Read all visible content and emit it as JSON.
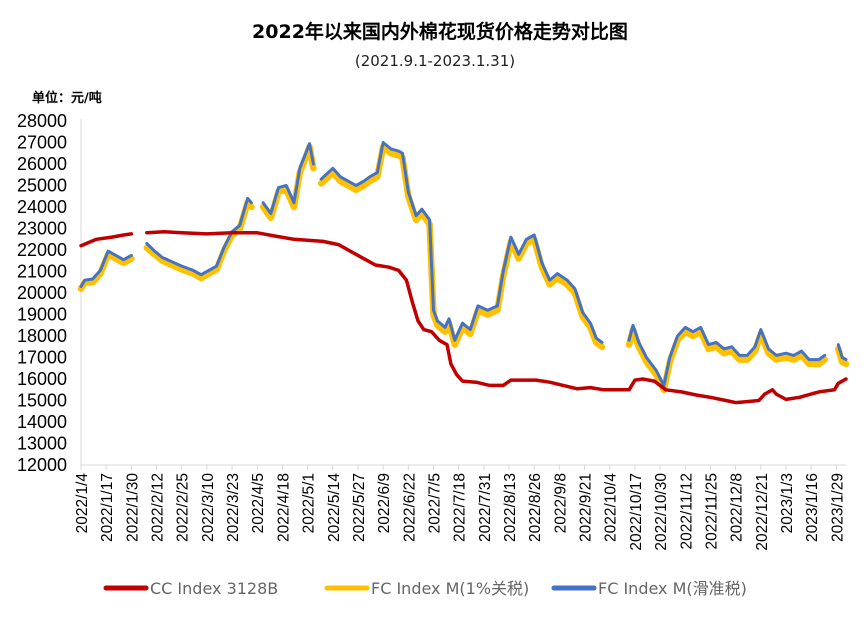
{
  "chart_data": {
    "type": "line",
    "title": "2022年以来国内外棉花现货价格走势对比图",
    "subtitle": "(2021.9.1-2023.1.31)",
    "unit_label": "单位：元/吨",
    "ylim": [
      12000,
      28000
    ],
    "y_ticks": [
      "28000",
      "27000",
      "26000",
      "25000",
      "24000",
      "23000",
      "22000",
      "21000",
      "20000",
      "19000",
      "18000",
      "17000",
      "16000",
      "15000",
      "14000",
      "13000",
      "12000"
    ],
    "x_ticks": [
      "2022/1/4",
      "2022/1/17",
      "2022/1/30",
      "2022/2/12",
      "2022/2/25",
      "2022/3/10",
      "2022/3/23",
      "2022/4/5",
      "2022/4/18",
      "2022/5/1",
      "2022/5/14",
      "2022/5/27",
      "2022/6/9",
      "2022/6/22",
      "2022/7/5",
      "2022/7/18",
      "2022/7/31",
      "2022/8/13",
      "2022/8/26",
      "2022/9/8",
      "2022/9/21",
      "2022/10/4",
      "2022/10/17",
      "2022/10/30",
      "2022/11/12",
      "2022/11/25",
      "2022/12/8",
      "2022/12/21",
      "2023/1/3",
      "2023/1/16",
      "2023/1/29"
    ],
    "x_range": [
      "2022/1/4",
      "2023/2/3"
    ],
    "grid": false,
    "legend_position": "bottom",
    "series": [
      {
        "name": "CC Index 3128B",
        "color": "#c00000",
        "points": [
          [
            "2022/1/4",
            22200
          ],
          [
            "2022/1/8",
            22350
          ],
          [
            "2022/1/12",
            22500
          ],
          [
            "2022/1/20",
            22600
          ],
          [
            "2022/1/26",
            22700
          ],
          [
            "2022/1/30",
            22750
          ],
          null,
          [
            "2022/2/7",
            22800
          ],
          [
            "2022/2/16",
            22850
          ],
          [
            "2022/2/25",
            22800
          ],
          [
            "2022/3/10",
            22750
          ],
          [
            "2022/3/23",
            22800
          ],
          [
            "2022/4/5",
            22800
          ],
          [
            "2022/4/14",
            22650
          ],
          [
            "2022/4/24",
            22500
          ],
          [
            "2022/5/1",
            22450
          ],
          [
            "2022/5/9",
            22400
          ],
          [
            "2022/5/17",
            22250
          ],
          [
            "2022/5/24",
            21900
          ],
          [
            "2022/5/31",
            21550
          ],
          [
            "2022/6/5",
            21300
          ],
          [
            "2022/6/12",
            21200
          ],
          [
            "2022/6/17",
            21050
          ],
          [
            "2022/6/21",
            20600
          ],
          [
            "2022/6/24",
            19600
          ],
          [
            "2022/6/27",
            18700
          ],
          [
            "2022/6/30",
            18300
          ],
          [
            "2022/7/4",
            18200
          ],
          [
            "2022/7/8",
            17800
          ],
          [
            "2022/7/12",
            17600
          ],
          [
            "2022/7/14",
            16700
          ],
          [
            "2022/7/17",
            16200
          ],
          [
            "2022/7/20",
            15900
          ],
          [
            "2022/7/27",
            15850
          ],
          [
            "2022/8/3",
            15700
          ],
          [
            "2022/8/10",
            15700
          ],
          [
            "2022/8/14",
            15950
          ],
          [
            "2022/8/20",
            15950
          ],
          [
            "2022/8/27",
            15950
          ],
          [
            "2022/9/3",
            15850
          ],
          [
            "2022/9/10",
            15700
          ],
          [
            "2022/9/17",
            15550
          ],
          [
            "2022/9/24",
            15600
          ],
          [
            "2022/10/1",
            15500
          ],
          [
            "2022/10/14",
            15500
          ],
          [
            "2022/10/17",
            15950
          ],
          [
            "2022/10/21",
            16000
          ],
          [
            "2022/10/27",
            15900
          ],
          [
            "2022/11/2",
            15500
          ],
          [
            "2022/11/10",
            15400
          ],
          [
            "2022/11/18",
            15250
          ],
          [
            "2022/11/25",
            15150
          ],
          [
            "2022/12/3",
            15000
          ],
          [
            "2022/12/8",
            14900
          ],
          [
            "2022/12/14",
            14950
          ],
          [
            "2022/12/20",
            15000
          ],
          [
            "2022/12/23",
            15300
          ],
          [
            "2022/12/27",
            15500
          ],
          [
            "2022/12/29",
            15300
          ],
          [
            "2023/1/3",
            15050
          ],
          [
            "2023/1/10",
            15150
          ],
          [
            "2023/1/16",
            15300
          ],
          [
            "2023/1/20",
            15400
          ],
          [
            "2023/1/28",
            15500
          ],
          [
            "2023/1/30",
            15800
          ],
          [
            "2023/2/3",
            16000
          ]
        ]
      },
      {
        "name": "FC Index M(1%关税)",
        "color": "#ffc000",
        "points": [
          [
            "2022/1/4",
            20200
          ],
          [
            "2022/1/6",
            20500
          ],
          [
            "2022/1/10",
            20500
          ],
          [
            "2022/1/14",
            20900
          ],
          [
            "2022/1/18",
            21800
          ],
          [
            "2022/1/22",
            21600
          ],
          [
            "2022/1/26",
            21400
          ],
          [
            "2022/1/30",
            21600
          ],
          null,
          [
            "2022/2/7",
            22100
          ],
          [
            "2022/2/11",
            21800
          ],
          [
            "2022/2/15",
            21500
          ],
          [
            "2022/2/20",
            21300
          ],
          [
            "2022/2/25",
            21100
          ],
          [
            "2022/3/3",
            20900
          ],
          [
            "2022/3/7",
            20700
          ],
          [
            "2022/3/11",
            20900
          ],
          [
            "2022/3/15",
            21100
          ],
          [
            "2022/3/19",
            22000
          ],
          [
            "2022/3/23",
            22700
          ],
          [
            "2022/3/27",
            23000
          ],
          [
            "2022/3/31",
            24200
          ],
          [
            "2022/4/2",
            24000
          ],
          null,
          [
            "2022/4/8",
            24000
          ],
          [
            "2022/4/12",
            23500
          ],
          [
            "2022/4/16",
            24700
          ],
          [
            "2022/4/20",
            24800
          ],
          [
            "2022/4/24",
            24000
          ],
          [
            "2022/4/27",
            25600
          ],
          [
            "2022/4/30",
            26300
          ],
          [
            "2022/5/2",
            26800
          ],
          [
            "2022/5/4",
            25800
          ],
          null,
          [
            "2022/5/8",
            25100
          ],
          [
            "2022/5/14",
            25600
          ],
          [
            "2022/5/18",
            25200
          ],
          [
            "2022/5/22",
            25000
          ],
          [
            "2022/5/26",
            24800
          ],
          [
            "2022/5/30",
            25000
          ],
          [
            "2022/6/2",
            25200
          ],
          [
            "2022/6/6",
            25400
          ],
          [
            "2022/6/9",
            26800
          ],
          [
            "2022/6/13",
            26500
          ],
          [
            "2022/6/17",
            26400
          ],
          [
            "2022/6/19",
            26300
          ],
          [
            "2022/6/22",
            24500
          ],
          [
            "2022/6/26",
            23400
          ],
          [
            "2022/6/29",
            23700
          ],
          [
            "2022/7/3",
            23200
          ],
          [
            "2022/7/5",
            19000
          ],
          [
            "2022/7/7",
            18500
          ],
          [
            "2022/7/11",
            18200
          ],
          [
            "2022/7/13",
            18600
          ],
          [
            "2022/7/16",
            17600
          ],
          [
            "2022/7/20",
            18400
          ],
          [
            "2022/7/24",
            18100
          ],
          [
            "2022/7/28",
            19200
          ],
          [
            "2022/8/2",
            19000
          ],
          [
            "2022/8/7",
            19200
          ],
          [
            "2022/8/10",
            20800
          ],
          [
            "2022/8/14",
            22400
          ],
          [
            "2022/8/18",
            21600
          ],
          [
            "2022/8/22",
            22300
          ],
          [
            "2022/8/26",
            22500
          ],
          [
            "2022/8/30",
            21200
          ],
          [
            "2022/9/3",
            20400
          ],
          [
            "2022/9/7",
            20700
          ],
          [
            "2022/9/12",
            20400
          ],
          [
            "2022/9/16",
            20000
          ],
          [
            "2022/9/20",
            18900
          ],
          [
            "2022/9/24",
            18400
          ],
          [
            "2022/9/27",
            17700
          ],
          [
            "2022/9/30",
            17500
          ],
          null,
          [
            "2022/10/14",
            17600
          ],
          [
            "2022/10/16",
            18300
          ],
          [
            "2022/10/19",
            17500
          ],
          [
            "2022/10/23",
            16800
          ],
          [
            "2022/10/28",
            16200
          ],
          [
            "2022/11/1",
            15500
          ],
          [
            "2022/11/4",
            16800
          ],
          [
            "2022/11/8",
            17800
          ],
          [
            "2022/11/12",
            18200
          ],
          [
            "2022/11/16",
            18000
          ],
          [
            "2022/11/20",
            18200
          ],
          [
            "2022/11/24",
            17400
          ],
          [
            "2022/11/28",
            17500
          ],
          [
            "2022/12/2",
            17200
          ],
          [
            "2022/12/6",
            17300
          ],
          [
            "2022/12/10",
            16900
          ],
          [
            "2022/12/14",
            16900
          ],
          [
            "2022/12/18",
            17300
          ],
          [
            "2022/12/21",
            18100
          ],
          [
            "2022/12/25",
            17200
          ],
          [
            "2022/12/29",
            16900
          ],
          [
            "2023/1/3",
            17000
          ],
          [
            "2023/1/7",
            16900
          ],
          [
            "2023/1/11",
            17100
          ],
          [
            "2023/1/15",
            16700
          ],
          [
            "2023/1/20",
            16700
          ],
          [
            "2023/1/23",
            16900
          ],
          null,
          [
            "2023/1/30",
            17400
          ],
          [
            "2023/2/1",
            16800
          ],
          [
            "2023/2/3",
            16700
          ]
        ]
      },
      {
        "name": "FC Index M(滑准税)",
        "color": "#4472c4",
        "points": [
          [
            "2022/1/4",
            20300
          ],
          [
            "2022/1/6",
            20600
          ],
          [
            "2022/1/10",
            20650
          ],
          [
            "2022/1/14",
            21050
          ],
          [
            "2022/1/18",
            21950
          ],
          [
            "2022/1/22",
            21750
          ],
          [
            "2022/1/26",
            21550
          ],
          [
            "2022/1/30",
            21750
          ],
          null,
          [
            "2022/2/7",
            22300
          ],
          [
            "2022/2/11",
            21950
          ],
          [
            "2022/2/15",
            21650
          ],
          [
            "2022/2/20",
            21450
          ],
          [
            "2022/2/25",
            21250
          ],
          [
            "2022/3/3",
            21050
          ],
          [
            "2022/3/7",
            20850
          ],
          [
            "2022/3/11",
            21050
          ],
          [
            "2022/3/15",
            21250
          ],
          [
            "2022/3/19",
            22150
          ],
          [
            "2022/3/23",
            22850
          ],
          [
            "2022/3/27",
            23150
          ],
          [
            "2022/3/31",
            24400
          ],
          [
            "2022/4/2",
            24200
          ],
          null,
          [
            "2022/4/8",
            24200
          ],
          [
            "2022/4/12",
            23700
          ],
          [
            "2022/4/16",
            24900
          ],
          [
            "2022/4/20",
            25000
          ],
          [
            "2022/4/24",
            24200
          ],
          [
            "2022/4/27",
            25800
          ],
          [
            "2022/4/30",
            26500
          ],
          [
            "2022/5/2",
            26950
          ],
          [
            "2022/5/4",
            26000
          ],
          null,
          [
            "2022/5/8",
            25300
          ],
          [
            "2022/5/14",
            25800
          ],
          [
            "2022/5/18",
            25400
          ],
          [
            "2022/5/22",
            25200
          ],
          [
            "2022/5/26",
            25000
          ],
          [
            "2022/5/30",
            25200
          ],
          [
            "2022/6/2",
            25400
          ],
          [
            "2022/6/6",
            25600
          ],
          [
            "2022/6/9",
            27000
          ],
          [
            "2022/6/13",
            26700
          ],
          [
            "2022/6/17",
            26600
          ],
          [
            "2022/6/19",
            26500
          ],
          [
            "2022/6/22",
            24700
          ],
          [
            "2022/6/26",
            23600
          ],
          [
            "2022/6/29",
            23900
          ],
          [
            "2022/7/3",
            23400
          ],
          [
            "2022/7/5",
            19200
          ],
          [
            "2022/7/7",
            18700
          ],
          [
            "2022/7/11",
            18400
          ],
          [
            "2022/7/13",
            18800
          ],
          [
            "2022/7/16",
            17800
          ],
          [
            "2022/7/20",
            18600
          ],
          [
            "2022/7/24",
            18300
          ],
          [
            "2022/7/28",
            19400
          ],
          [
            "2022/8/2",
            19200
          ],
          [
            "2022/8/7",
            19400
          ],
          [
            "2022/8/10",
            21000
          ],
          [
            "2022/8/14",
            22600
          ],
          [
            "2022/8/18",
            21800
          ],
          [
            "2022/8/22",
            22500
          ],
          [
            "2022/8/26",
            22700
          ],
          [
            "2022/8/30",
            21400
          ],
          [
            "2022/9/3",
            20600
          ],
          [
            "2022/9/7",
            20900
          ],
          [
            "2022/9/12",
            20600
          ],
          [
            "2022/9/16",
            20200
          ],
          [
            "2022/9/20",
            19100
          ],
          [
            "2022/9/24",
            18600
          ],
          [
            "2022/9/27",
            17900
          ],
          [
            "2022/9/30",
            17700
          ],
          null,
          [
            "2022/10/14",
            17800
          ],
          [
            "2022/10/16",
            18500
          ],
          [
            "2022/10/19",
            17700
          ],
          [
            "2022/10/23",
            17000
          ],
          [
            "2022/10/28",
            16400
          ],
          [
            "2022/11/1",
            15700
          ],
          [
            "2022/11/4",
            17000
          ],
          [
            "2022/11/8",
            18000
          ],
          [
            "2022/11/12",
            18400
          ],
          [
            "2022/11/16",
            18200
          ],
          [
            "2022/11/20",
            18400
          ],
          [
            "2022/11/24",
            17600
          ],
          [
            "2022/11/28",
            17700
          ],
          [
            "2022/12/2",
            17400
          ],
          [
            "2022/12/6",
            17500
          ],
          [
            "2022/12/10",
            17100
          ],
          [
            "2022/12/14",
            17100
          ],
          [
            "2022/12/18",
            17500
          ],
          [
            "2022/12/21",
            18300
          ],
          [
            "2022/12/25",
            17400
          ],
          [
            "2022/12/29",
            17100
          ],
          [
            "2023/1/3",
            17200
          ],
          [
            "2023/1/7",
            17100
          ],
          [
            "2023/1/11",
            17300
          ],
          [
            "2023/1/15",
            16900
          ],
          [
            "2023/1/20",
            16900
          ],
          [
            "2023/1/23",
            17100
          ],
          null,
          [
            "2023/1/30",
            17600
          ],
          [
            "2023/2/1",
            17000
          ],
          [
            "2023/2/3",
            16900
          ]
        ]
      }
    ]
  }
}
